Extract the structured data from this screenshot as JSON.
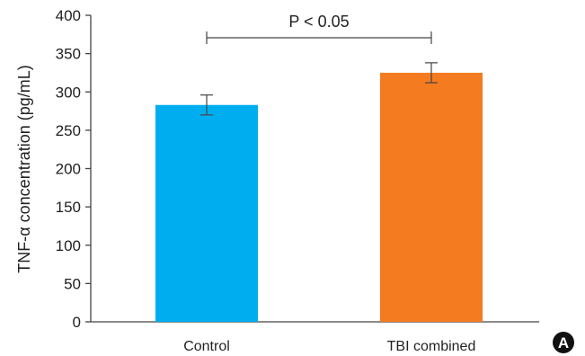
{
  "chart_data": {
    "type": "bar",
    "categories": [
      "Control",
      "TBI combined"
    ],
    "values": [
      283,
      325
    ],
    "errors": [
      13,
      13
    ],
    "colors": [
      "#00AEEF",
      "#F47B20"
    ],
    "ylabel": "TNF-α concentration (pg/mL)",
    "xlabel": "",
    "ylim": [
      0,
      400
    ],
    "yticks": [
      0,
      50,
      100,
      150,
      200,
      250,
      300,
      350,
      400
    ],
    "grid": false,
    "annotation": "P < 0.05",
    "panel_label": "A"
  }
}
